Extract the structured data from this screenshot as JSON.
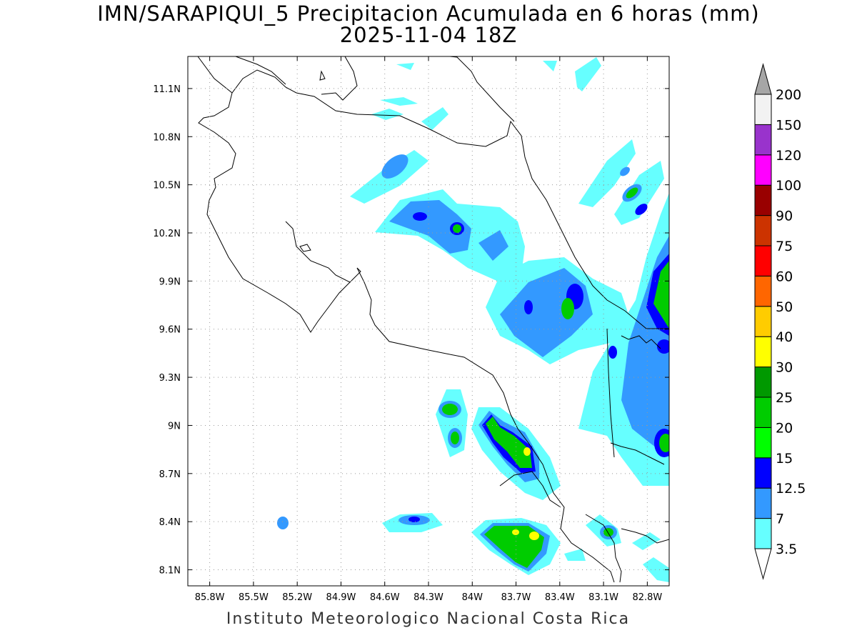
{
  "title": "IMN/SARAPIQUI_5 Precipitacion Acumulada en 6 horas (mm)",
  "subtitle": "2025-11-04 18Z",
  "footer": "Instituto Meteorologico Nacional Costa Rica",
  "map": {
    "lon_range": [
      -85.95,
      -82.65
    ],
    "lat_range": [
      8.0,
      11.3
    ],
    "lon_ticks": [
      "85.8W",
      "85.5W",
      "85.2W",
      "84.9W",
      "84.6W",
      "84.3W",
      "84W",
      "83.7W",
      "83.4W",
      "83.1W",
      "82.8W"
    ],
    "lat_ticks": [
      "11.1N",
      "10.8N",
      "10.5N",
      "10.2N",
      "9.9N",
      "9.6N",
      "9.3N",
      "9N",
      "8.7N",
      "8.4N",
      "8.1N"
    ],
    "grid": "dotted"
  },
  "colorbar": {
    "labels": [
      "3.5",
      "7",
      "12.5",
      "15",
      "20",
      "25",
      "30",
      "40",
      "50",
      "60",
      "75",
      "90",
      "100",
      "120",
      "150",
      "200"
    ],
    "colors": [
      "#ffffff",
      "#66ffff",
      "#3399ff",
      "#0000ff",
      "#00ff00",
      "#00cc00",
      "#009900",
      "#ffff00",
      "#ffcc00",
      "#ff6600",
      "#ff0000",
      "#cc3300",
      "#990000",
      "#ff00ff",
      "#9933cc",
      "#f2f2f2",
      "#a6a6a6"
    ]
  }
}
